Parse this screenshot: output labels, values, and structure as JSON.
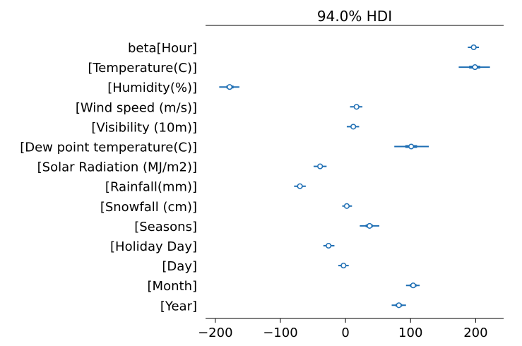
{
  "chart_data": {
    "type": "forest",
    "title": "94.0% HDI",
    "xlabel": "",
    "ylabel": "",
    "xlim": [
      -215,
      243
    ],
    "xticks": [
      -200,
      -100,
      0,
      100,
      200
    ],
    "xtick_labels": [
      "−200",
      "−100",
      "0",
      "100",
      "200"
    ],
    "grid": false,
    "legend": "none",
    "colors": {
      "series": "#1f6fb4",
      "marker_fill": "#ffffff"
    },
    "rows": [
      {
        "label": "beta[Hour]",
        "mean": 197,
        "hdi_low": 188,
        "hdi_high": 205,
        "iqr_low": 193,
        "iqr_high": 201
      },
      {
        "label": "[Temperature(C)]",
        "mean": 199,
        "hdi_low": 174,
        "hdi_high": 222,
        "iqr_low": 190,
        "iqr_high": 207
      },
      {
        "label": "[Humidity(%)]",
        "mean": -178,
        "hdi_low": -194,
        "hdi_high": -163,
        "iqr_low": -183,
        "iqr_high": -172
      },
      {
        "label": "[Wind speed (m/s)]",
        "mean": 17,
        "hdi_low": 7,
        "hdi_high": 26,
        "iqr_low": 13,
        "iqr_high": 21
      },
      {
        "label": "[Visibility (10m)]",
        "mean": 12,
        "hdi_low": 2,
        "hdi_high": 21,
        "iqr_low": 8,
        "iqr_high": 16
      },
      {
        "label": "[Dew point temperature(C)]",
        "mean": 101,
        "hdi_low": 75,
        "hdi_high": 128,
        "iqr_low": 92,
        "iqr_high": 110
      },
      {
        "label": "[Solar Radiation (MJ/m2)]",
        "mean": -39,
        "hdi_low": -49,
        "hdi_high": -29,
        "iqr_low": -43,
        "iqr_high": -35
      },
      {
        "label": "[Rainfall(mm)]",
        "mean": -70,
        "hdi_low": -79,
        "hdi_high": -61,
        "iqr_low": -74,
        "iqr_high": -66
      },
      {
        "label": "[Snowfall (cm)]",
        "mean": 2,
        "hdi_low": -5,
        "hdi_high": 10,
        "iqr_low": -1,
        "iqr_high": 5
      },
      {
        "label": "[Seasons]",
        "mean": 37,
        "hdi_low": 22,
        "hdi_high": 52,
        "iqr_low": 31,
        "iqr_high": 42
      },
      {
        "label": "[Holiday Day]",
        "mean": -26,
        "hdi_low": -34,
        "hdi_high": -17,
        "iqr_low": -29,
        "iqr_high": -22
      },
      {
        "label": "[Day]",
        "mean": -3,
        "hdi_low": -11,
        "hdi_high": 5,
        "iqr_low": -6,
        "iqr_high": 0
      },
      {
        "label": "[Month]",
        "mean": 104,
        "hdi_low": 93,
        "hdi_high": 114,
        "iqr_low": 99,
        "iqr_high": 109
      },
      {
        "label": "[Year]",
        "mean": 82,
        "hdi_low": 71,
        "hdi_high": 93,
        "iqr_low": 77,
        "iqr_high": 87
      }
    ]
  }
}
